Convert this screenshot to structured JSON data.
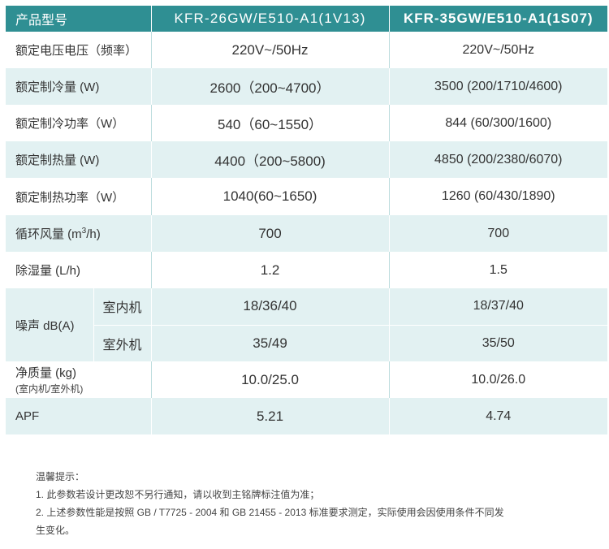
{
  "header": {
    "label": "产品型号",
    "model1": "KFR-26GW/E510-A1(1V13)",
    "model2": "KFR-35GW/E510-A1(1S07)"
  },
  "rows": {
    "voltage": {
      "label": "额定电压电压（频率）",
      "v1": "220V~/50Hz",
      "v2": "220V~/50Hz"
    },
    "cooling_capacity": {
      "label": "额定制冷量 (W)",
      "v1": "2600（200~4700）",
      "v2": "3500 (200/1710/4600)"
    },
    "cooling_power": {
      "label": "额定制冷功率（W）",
      "v1": "540（60~1550）",
      "v2": "844 (60/300/1600)"
    },
    "heating_capacity": {
      "label": "额定制热量 (W)",
      "v1": "4400（200~5800)",
      "v2": "4850 (200/2380/6070)"
    },
    "heating_power": {
      "label": "额定制热功率（W）",
      "v1": "1040(60~1650)",
      "v2": "1260 (60/430/1890)"
    },
    "airflow": {
      "label_pre": "循环风量 (m",
      "label_sup": "3",
      "label_post": "/h)",
      "v1": "700",
      "v2": "700"
    },
    "dehumid": {
      "label": "除湿量 (L/h)",
      "v1": "1.2",
      "v2": "1.5"
    },
    "noise": {
      "label": "噪声 dB(A)",
      "indoor_label": "室内机",
      "indoor_v1": "18/36/40",
      "indoor_v2": "18/37/40",
      "outdoor_label": "室外机",
      "outdoor_v1": "35/49",
      "outdoor_v2": "35/50"
    },
    "weight": {
      "label": "净质量 (kg)",
      "sublabel": "(室内机/室外机)",
      "v1": "10.0/25.0",
      "v2": "10.0/26.0"
    },
    "apf": {
      "label": "APF",
      "v1": "5.21",
      "v2": "4.74"
    }
  },
  "notes": {
    "title": "温馨提示：",
    "line1": "1. 此参数若设计更改恕不另行通知，请以收到主铭牌标注值为准；",
    "line2a": "2. 上述参数性能是按照 GB / T7725 - 2004 和 GB 21455 - 2013 标准要求测定，实际使用会因使用条件不同发",
    "line2b": "生变化。"
  }
}
